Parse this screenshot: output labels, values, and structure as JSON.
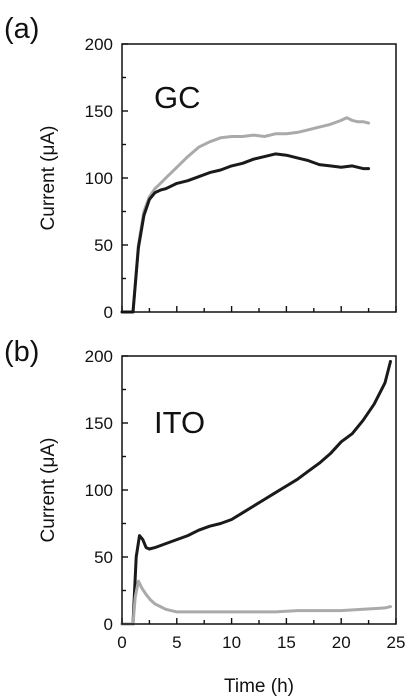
{
  "chart_data": [
    {
      "type": "line",
      "panel_label": "(a)",
      "inset_label": "GC",
      "xlabel": "",
      "ylabel": "Current (μA)",
      "xlim": [
        0,
        25
      ],
      "ylim": [
        0,
        200
      ],
      "xticks": [
        0,
        5,
        10,
        15,
        20,
        25
      ],
      "xtick_labels": [],
      "yticks": [
        0,
        50,
        100,
        150,
        200
      ],
      "ytick_labels": [
        "0",
        "50",
        "100",
        "150",
        "200"
      ],
      "grid": false,
      "series": [
        {
          "color": "#aaaaaa",
          "x": [
            0,
            0.9,
            1.0,
            1.5,
            2.0,
            2.5,
            3.0,
            3.5,
            4.0,
            5.0,
            6.0,
            7.0,
            8.0,
            9.0,
            10.0,
            11.0,
            12.0,
            13.0,
            14.0,
            15.0,
            16.0,
            17.0,
            18.0,
            19.0,
            20.0,
            20.5,
            21.0,
            21.5,
            22.0,
            22.5
          ],
          "y": [
            0,
            0,
            0,
            50,
            75,
            86,
            92,
            96,
            100,
            108,
            116,
            123,
            127,
            130,
            131,
            131,
            132,
            131,
            133,
            133,
            134,
            136,
            138,
            140,
            143,
            145,
            143,
            142,
            142,
            141
          ]
        },
        {
          "color": "#1a1a1a",
          "x": [
            0,
            0.9,
            1.0,
            1.5,
            2.0,
            2.5,
            3.0,
            3.5,
            4.0,
            5.0,
            6.0,
            7.0,
            8.0,
            9.0,
            10.0,
            11.0,
            12.0,
            13.0,
            14.0,
            15.0,
            16.0,
            17.0,
            18.0,
            19.0,
            20.0,
            21.0,
            22.0,
            22.5
          ],
          "y": [
            0,
            0,
            0,
            48,
            72,
            84,
            89,
            91,
            92,
            96,
            98,
            101,
            104,
            106,
            109,
            111,
            114,
            116,
            118,
            117,
            115,
            113,
            110,
            109,
            108,
            109,
            107,
            107
          ]
        }
      ]
    },
    {
      "type": "line",
      "panel_label": "(b)",
      "inset_label": "ITO",
      "xlabel": "Time (h)",
      "ylabel": "Current (μA)",
      "xlim": [
        0,
        25
      ],
      "ylim": [
        0,
        200
      ],
      "xticks": [
        0,
        5,
        10,
        15,
        20,
        25
      ],
      "xtick_labels": [
        "0",
        "5",
        "10",
        "15",
        "20",
        "25"
      ],
      "yticks": [
        0,
        50,
        100,
        150,
        200
      ],
      "ytick_labels": [
        "0",
        "50",
        "100",
        "150",
        "200"
      ],
      "grid": false,
      "series": [
        {
          "color": "#1a1a1a",
          "x": [
            0,
            0.9,
            1.0,
            1.3,
            1.6,
            1.9,
            2.2,
            2.5,
            3.0,
            4.0,
            5.0,
            6.0,
            7.0,
            8.0,
            9.0,
            10.0,
            11.0,
            12.0,
            13.0,
            14.0,
            15.0,
            16.0,
            17.0,
            18.0,
            19.0,
            20.0,
            21.0,
            22.0,
            23.0,
            24.0,
            24.5
          ],
          "y": [
            0,
            0,
            0,
            50,
            66,
            63,
            57,
            56,
            57,
            60,
            63,
            66,
            70,
            73,
            75,
            78,
            83,
            88,
            93,
            98,
            103,
            108,
            114,
            120,
            127,
            136,
            142,
            152,
            164,
            180,
            196
          ]
        },
        {
          "color": "#aaaaaa",
          "x": [
            0,
            0.9,
            1.0,
            1.2,
            1.5,
            1.8,
            2.2,
            2.6,
            3.0,
            3.5,
            4.0,
            5.0,
            6.0,
            8.0,
            10.0,
            12.0,
            14.0,
            16.0,
            18.0,
            20.0,
            22.0,
            24.0,
            24.5
          ],
          "y": [
            0,
            0,
            0,
            20,
            32,
            27,
            22,
            18,
            15,
            13,
            11,
            9,
            9,
            9,
            9,
            9,
            9,
            10,
            10,
            10,
            11,
            12,
            13
          ]
        }
      ]
    }
  ]
}
